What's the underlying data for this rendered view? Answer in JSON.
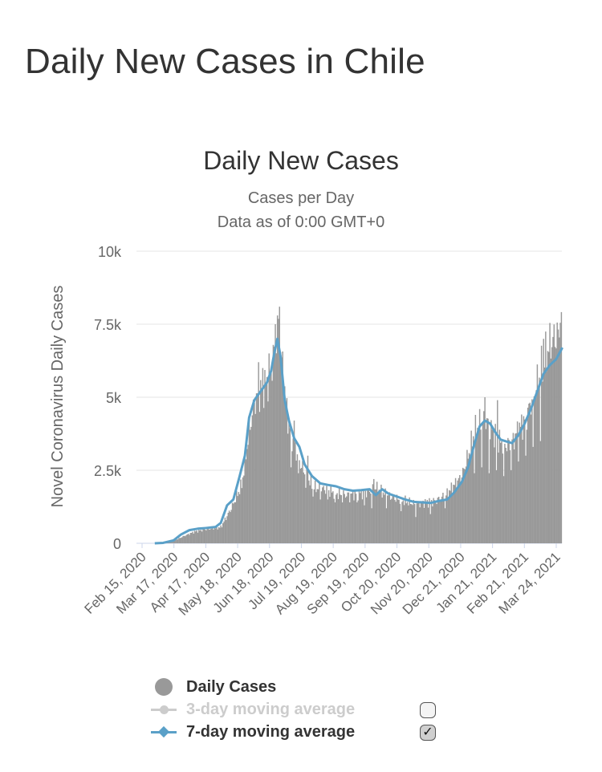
{
  "page_title": "Daily New Cases in Chile",
  "colors": {
    "bar": "#999999",
    "line7": "#5aa0c8",
    "line3_disabled": "#cccccc",
    "grid": "#e6e6e6",
    "axis": "#ccd6eb",
    "text": "#333333",
    "muted": "#666666"
  },
  "chart_data": {
    "type": "bar",
    "title": "Daily New Cases",
    "subtitle_lines": [
      "Cases per Day",
      "Data as of 0:00 GMT+0"
    ],
    "ylabel": "Novel Coronavirus Daily Cases",
    "ylim": [
      0,
      10000
    ],
    "yticks": [
      {
        "value": 0,
        "label": "0"
      },
      {
        "value": 2500,
        "label": "2.5k"
      },
      {
        "value": 5000,
        "label": "5k"
      },
      {
        "value": 7500,
        "label": "7.5k"
      },
      {
        "value": 10000,
        "label": "10k"
      }
    ],
    "start_date": "Feb 15, 2020",
    "num_days": 406,
    "x_tick_labels": [
      "Feb 15, 2020",
      "Mar 17, 2020",
      "Apr 17, 2020",
      "May 18, 2020",
      "Jun 18, 2020",
      "Jul 19, 2020",
      "Aug 19, 2020",
      "Sep 19, 2020",
      "Oct 20, 2020",
      "Nov 20, 2020",
      "Dec 21, 2020",
      "Jan 21, 2021",
      "Feb 21, 2021",
      "Mar 24, 2021"
    ],
    "series": [
      {
        "name": "Daily Cases",
        "type": "bar",
        "shape_points": [
          [
            0,
            0
          ],
          [
            17,
            0
          ],
          [
            25,
            10
          ],
          [
            35,
            80
          ],
          [
            45,
            250
          ],
          [
            55,
            400
          ],
          [
            62,
            450
          ],
          [
            70,
            500
          ],
          [
            80,
            550
          ],
          [
            90,
            1200
          ],
          [
            100,
            2000
          ],
          [
            107,
            3800
          ],
          [
            112,
            4800
          ],
          [
            120,
            5300
          ],
          [
            126,
            5600
          ],
          [
            132,
            6700
          ],
          [
            135,
            7200
          ],
          [
            139,
            6000
          ],
          [
            143,
            4500
          ],
          [
            148,
            3600
          ],
          [
            155,
            2800
          ],
          [
            163,
            2200
          ],
          [
            170,
            1900
          ],
          [
            180,
            1850
          ],
          [
            190,
            1700
          ],
          [
            200,
            1650
          ],
          [
            210,
            1700
          ],
          [
            220,
            1750
          ],
          [
            228,
            1900
          ],
          [
            236,
            1700
          ],
          [
            245,
            1550
          ],
          [
            255,
            1450
          ],
          [
            265,
            1350
          ],
          [
            275,
            1400
          ],
          [
            285,
            1450
          ],
          [
            295,
            1650
          ],
          [
            303,
            2000
          ],
          [
            310,
            2300
          ],
          [
            316,
            3000
          ],
          [
            322,
            3800
          ],
          [
            327,
            4100
          ],
          [
            333,
            4200
          ],
          [
            340,
            3800
          ],
          [
            346,
            3500
          ],
          [
            352,
            3350
          ],
          [
            358,
            3450
          ],
          [
            364,
            3900
          ],
          [
            370,
            4200
          ],
          [
            376,
            4800
          ],
          [
            382,
            5500
          ],
          [
            388,
            6200
          ],
          [
            394,
            6800
          ],
          [
            400,
            7100
          ],
          [
            406,
            7200
          ]
        ],
        "spikes": [
          {
            "day": 116,
            "value": 6200
          },
          {
            "day": 120,
            "value": 6000
          },
          {
            "day": 126,
            "value": 6500
          },
          {
            "day": 132,
            "value": 7500
          },
          {
            "day": 136,
            "value": 8100
          },
          {
            "day": 134,
            "value": 7800
          },
          {
            "day": 150,
            "value": 4200
          },
          {
            "day": 163,
            "value": 3000
          },
          {
            "day": 226,
            "value": 2200
          },
          {
            "day": 332,
            "value": 5000
          },
          {
            "day": 344,
            "value": 4900
          },
          {
            "day": 388,
            "value": 7000
          },
          {
            "day": 404,
            "value": 7550
          }
        ],
        "dips": [
          {
            "day": 147,
            "value": 2600
          },
          {
            "day": 154,
            "value": 2400
          },
          {
            "day": 161,
            "value": 1900
          },
          {
            "day": 168,
            "value": 1600
          },
          {
            "day": 175,
            "value": 1500
          },
          {
            "day": 182,
            "value": 1500
          },
          {
            "day": 189,
            "value": 1400
          },
          {
            "day": 196,
            "value": 1400
          },
          {
            "day": 203,
            "value": 1400
          },
          {
            "day": 210,
            "value": 1400
          },
          {
            "day": 217,
            "value": 1300
          },
          {
            "day": 224,
            "value": 1200
          },
          {
            "day": 238,
            "value": 1200
          },
          {
            "day": 252,
            "value": 1100
          },
          {
            "day": 266,
            "value": 900
          },
          {
            "day": 280,
            "value": 1000
          },
          {
            "day": 294,
            "value": 1200
          },
          {
            "day": 322,
            "value": 2400
          },
          {
            "day": 329,
            "value": 2600
          },
          {
            "day": 336,
            "value": 2400
          },
          {
            "day": 343,
            "value": 2500
          },
          {
            "day": 350,
            "value": 2300
          },
          {
            "day": 357,
            "value": 2500
          },
          {
            "day": 364,
            "value": 2800
          },
          {
            "day": 371,
            "value": 3000
          },
          {
            "day": 378,
            "value": 3300
          },
          {
            "day": 385,
            "value": 3500
          }
        ]
      },
      {
        "name": "7-day moving average",
        "type": "line",
        "points": [
          [
            17,
            0
          ],
          [
            25,
            15
          ],
          [
            35,
            100
          ],
          [
            42,
            300
          ],
          [
            50,
            450
          ],
          [
            58,
            500
          ],
          [
            65,
            520
          ],
          [
            75,
            560
          ],
          [
            80,
            700
          ],
          [
            86,
            1300
          ],
          [
            92,
            1500
          ],
          [
            98,
            2300
          ],
          [
            103,
            3000
          ],
          [
            107,
            4300
          ],
          [
            112,
            4900
          ],
          [
            118,
            5200
          ],
          [
            124,
            5500
          ],
          [
            128,
            5900
          ],
          [
            131,
            6500
          ],
          [
            134,
            7000
          ],
          [
            137,
            6400
          ],
          [
            141,
            4900
          ],
          [
            145,
            4200
          ],
          [
            150,
            3600
          ],
          [
            155,
            3300
          ],
          [
            160,
            2700
          ],
          [
            167,
            2300
          ],
          [
            175,
            2050
          ],
          [
            182,
            2000
          ],
          [
            190,
            1950
          ],
          [
            198,
            1850
          ],
          [
            206,
            1800
          ],
          [
            214,
            1820
          ],
          [
            222,
            1850
          ],
          [
            228,
            1650
          ],
          [
            234,
            1850
          ],
          [
            240,
            1700
          ],
          [
            248,
            1600
          ],
          [
            256,
            1500
          ],
          [
            264,
            1420
          ],
          [
            272,
            1400
          ],
          [
            280,
            1380
          ],
          [
            288,
            1450
          ],
          [
            296,
            1500
          ],
          [
            303,
            1750
          ],
          [
            310,
            2100
          ],
          [
            316,
            2600
          ],
          [
            322,
            3400
          ],
          [
            327,
            4000
          ],
          [
            332,
            4200
          ],
          [
            337,
            4100
          ],
          [
            342,
            3800
          ],
          [
            347,
            3550
          ],
          [
            353,
            3480
          ],
          [
            358,
            3430
          ],
          [
            364,
            3700
          ],
          [
            370,
            4100
          ],
          [
            376,
            4600
          ],
          [
            382,
            5200
          ],
          [
            388,
            5800
          ],
          [
            394,
            6100
          ],
          [
            400,
            6300
          ],
          [
            406,
            6700
          ]
        ]
      }
    ]
  },
  "legend": {
    "items": [
      {
        "label": "Daily Cases",
        "visible": true
      },
      {
        "label": "3-day moving average",
        "visible": false
      },
      {
        "label": "7-day moving average",
        "visible": true
      }
    ]
  }
}
